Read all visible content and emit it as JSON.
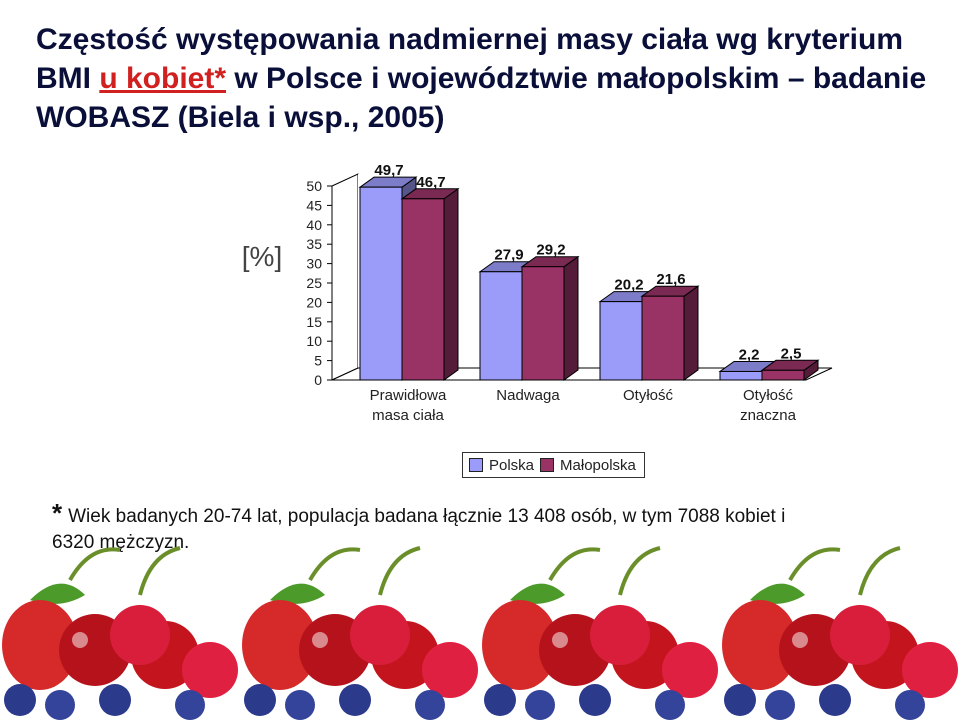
{
  "title": {
    "part1": "Częstość występowania nadmiernej masy ciała wg kryterium BMI ",
    "highlight": "u kobiet*",
    "part2": " w Polsce i województwie małopolskim – badanie WOBASZ (Biela i wsp., 2005)"
  },
  "colors": {
    "polska": "#9b9bfa",
    "malopolska": "#993366",
    "title_text": "#0a0f3a",
    "highlight": "#d02020"
  },
  "chart_data": {
    "type": "bar",
    "ylabel": "[%]",
    "ylim": [
      0,
      50
    ],
    "yticks": [
      "0",
      "5",
      "10",
      "15",
      "20",
      "25",
      "30",
      "35",
      "40",
      "45",
      "50"
    ],
    "categories": [
      [
        "Prawidłowa",
        "masa ciała"
      ],
      [
        "Nadwaga"
      ],
      [
        "Otyłość"
      ],
      [
        "Otyłość",
        "znaczna"
      ]
    ],
    "series": [
      {
        "name": "Polska",
        "values": [
          49.7,
          27.9,
          20.2,
          2.2
        ],
        "labels": [
          "49,7",
          "27,9",
          "20,2",
          "2,2"
        ]
      },
      {
        "name": "Małopolska",
        "values": [
          46.7,
          29.2,
          21.6,
          2.5
        ],
        "labels": [
          "46,7",
          "29,2",
          "21,6",
          "2,5"
        ]
      }
    ],
    "style": "3d-clustered",
    "legend": "bottom"
  },
  "legend": {
    "polska": "Polska",
    "malopolska": "Małopolska"
  },
  "footnote": {
    "star": "*",
    "text": "Wiek badanych 20-74 lat, populacja badana łącznie 13 408 osób, w tym 7088 kobiet i 6320 mężczyzn."
  },
  "decoration": {
    "icon": "cherries-berries-icon"
  }
}
